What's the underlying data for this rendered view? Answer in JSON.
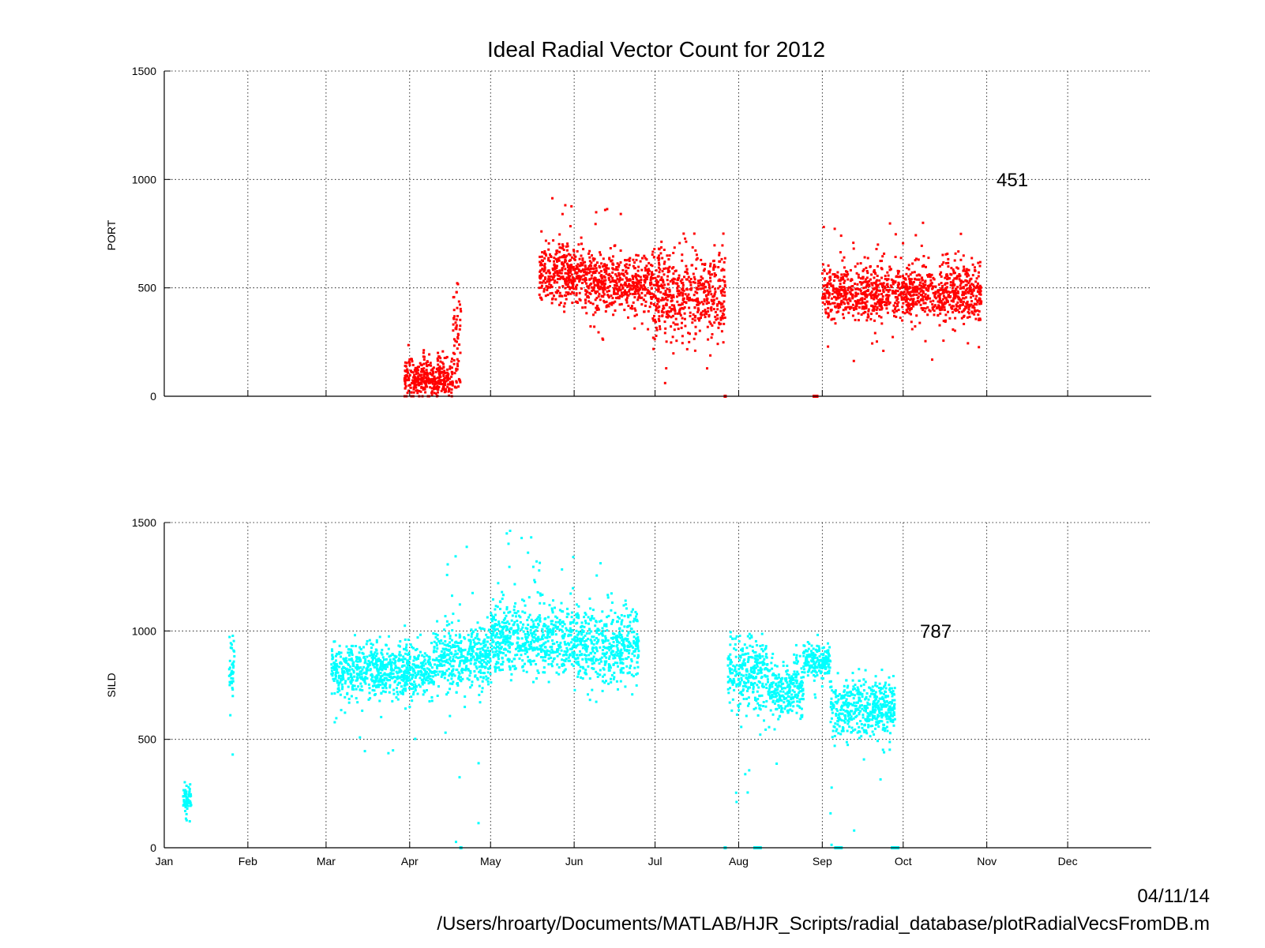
{
  "chart_data": {
    "type": "scatter",
    "title": "Ideal Radial Vector Count for 2012",
    "x_tick_labels": [
      "Jan",
      "Feb",
      "Mar",
      "Apr",
      "May",
      "Jun",
      "Jul",
      "Aug",
      "Sep",
      "Oct",
      "Nov",
      "Dec"
    ],
    "xlim": [
      "2012-01-01",
      "2013-01-01"
    ],
    "grid": true,
    "footer": {
      "date": "04/11/14",
      "path": "/Users/hroarty/Documents/MATLAB/HJR_Scripts/radial_database/plotRadialVecsFromDB.m"
    },
    "panels": [
      {
        "ylabel": "PORT",
        "ylim": [
          0,
          1500
        ],
        "y_ticks": [
          "0",
          "500",
          "1000",
          "1500"
        ],
        "color": "#ff0000",
        "annotation": "451",
        "segments": [
          {
            "start": "2012-03-30",
            "end": "2012-04-17",
            "mean": 85,
            "spread": 55,
            "min": 0,
            "max": 260
          },
          {
            "start": "2012-04-17",
            "end": "2012-04-20",
            "mean": 250,
            "spread": 150,
            "min": 0,
            "max": 575
          },
          {
            "start": "2012-05-19",
            "end": "2012-06-05",
            "mean": 570,
            "spread": 75,
            "min": 380,
            "max": 935
          },
          {
            "start": "2012-06-05",
            "end": "2012-06-30",
            "mean": 520,
            "spread": 70,
            "min": 220,
            "max": 870
          },
          {
            "start": "2012-06-30",
            "end": "2012-07-27",
            "mean": 470,
            "spread": 110,
            "min": 60,
            "max": 750
          },
          {
            "start": "2012-09-01",
            "end": "2012-10-30",
            "mean": 480,
            "spread": 70,
            "min": 160,
            "max": 800
          }
        ],
        "zero_points": [
          "2012-07-27",
          "2012-08-29",
          "2012-08-30"
        ]
      },
      {
        "ylabel": "SILD",
        "ylim": [
          0,
          1500
        ],
        "y_ticks": [
          "0",
          "500",
          "1000",
          "1500"
        ],
        "color": "#00ffff",
        "annotation": "787",
        "segments": [
          {
            "start": "2012-01-08",
            "end": "2012-01-11",
            "mean": 225,
            "spread": 35,
            "min": 120,
            "max": 540
          },
          {
            "start": "2012-01-25",
            "end": "2012-01-27",
            "mean": 830,
            "spread": 90,
            "min": 260,
            "max": 1000
          },
          {
            "start": "2012-03-03",
            "end": "2012-04-10",
            "mean": 820,
            "spread": 70,
            "min": 420,
            "max": 1030
          },
          {
            "start": "2012-04-10",
            "end": "2012-05-01",
            "mean": 880,
            "spread": 80,
            "min": 0,
            "max": 1440
          },
          {
            "start": "2012-05-01",
            "end": "2012-06-01",
            "mean": 960,
            "spread": 85,
            "min": 740,
            "max": 1480
          },
          {
            "start": "2012-06-01",
            "end": "2012-06-25",
            "mean": 930,
            "spread": 90,
            "min": 650,
            "max": 1410
          },
          {
            "start": "2012-07-28",
            "end": "2012-08-12",
            "mean": 800,
            "spread": 90,
            "min": 170,
            "max": 1120
          },
          {
            "start": "2012-08-12",
            "end": "2012-08-25",
            "mean": 730,
            "spread": 70,
            "min": 280,
            "max": 970
          },
          {
            "start": "2012-08-25",
            "end": "2012-09-04",
            "mean": 860,
            "spread": 45,
            "min": 680,
            "max": 1000
          },
          {
            "start": "2012-09-04",
            "end": "2012-09-28",
            "mean": 640,
            "spread": 70,
            "min": 0,
            "max": 970
          }
        ],
        "zero_points": [
          "2012-04-20",
          "2012-07-27",
          "2012-08-07",
          "2012-08-08",
          "2012-08-09",
          "2012-09-06",
          "2012-09-07",
          "2012-09-08",
          "2012-09-27",
          "2012-09-28",
          "2012-09-29"
        ]
      }
    ]
  }
}
